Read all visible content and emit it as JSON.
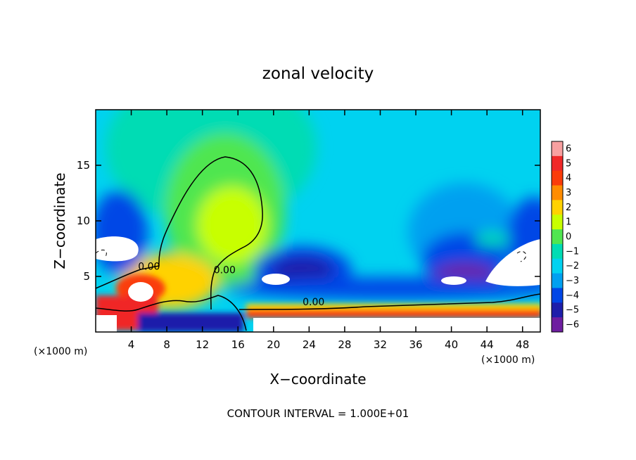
{
  "chart_data": {
    "type": "heatmap",
    "title": "zonal velocity",
    "xlabel": "X−coordinate",
    "ylabel": "Z−coordinate",
    "x_unit_left": "(×1000 m)",
    "x_unit_right": "(×1000 m)",
    "xlim": [
      0,
      50
    ],
    "ylim": [
      0,
      20
    ],
    "x_ticks": [
      4,
      8,
      12,
      16,
      20,
      24,
      28,
      32,
      36,
      40,
      44,
      48
    ],
    "x_tick_labels": [
      "4",
      "8",
      "12",
      "16",
      "20",
      "24",
      "28",
      "32",
      "36",
      "40",
      "44",
      "48"
    ],
    "y_ticks": [
      5,
      10,
      15
    ],
    "y_tick_labels": [
      "5",
      "10",
      "15"
    ],
    "colorbar": {
      "range": [
        -6,
        6
      ],
      "levels": [
        6,
        5,
        4,
        3,
        2,
        1,
        0,
        -1,
        -2,
        -3,
        -4,
        -5,
        -6
      ],
      "labels": [
        "6",
        "5",
        "4",
        "3",
        "2",
        "1",
        "0",
        "−1",
        "−2",
        "−3",
        "−4",
        "−5",
        "−6"
      ],
      "colors": [
        "#f8a0a0",
        "#f02828",
        "#fa3c0a",
        "#ff8c00",
        "#ffd200",
        "#c8ff00",
        "#50e650",
        "#00dcb4",
        "#00d2f0",
        "#00a0f0",
        "#0046e6",
        "#1e1eaa",
        "#6e1ea0"
      ]
    },
    "contour_labels": [
      {
        "text": "0.00",
        "x": 6,
        "y": 5.6
      },
      {
        "text": "0.00",
        "x": 14.5,
        "y": 5.3
      },
      {
        "text": "0.00",
        "x": 24.5,
        "y": 2.4
      }
    ],
    "footer": "CONTOUR INTERVAL = 1.000E+01"
  }
}
